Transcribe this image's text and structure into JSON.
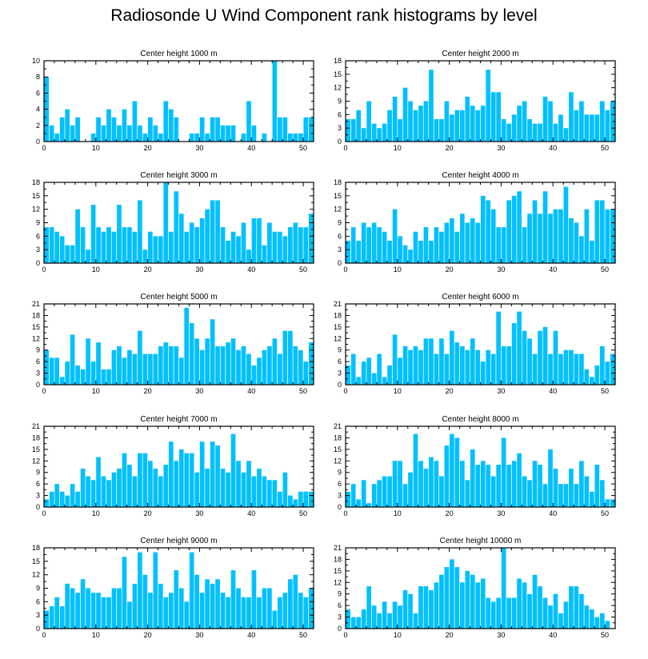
{
  "title": "Radiosonde U Wind Component rank histograms by level",
  "colors": {
    "bar": "#00c0ff",
    "bar_edge": "#ffffff",
    "axis": "#000000",
    "background": "#ffffff"
  },
  "chart_data": [
    {
      "type": "bar",
      "title": "Center height 1000 m",
      "xlim": [
        0,
        52
      ],
      "xticks": [
        0,
        10,
        20,
        30,
        40,
        50
      ],
      "ylim": [
        0,
        10
      ],
      "yticks": [
        0,
        2,
        4,
        6,
        8,
        10
      ],
      "values": [
        8,
        2,
        1,
        3,
        4,
        2,
        3,
        0,
        0,
        1,
        3,
        2,
        4,
        3,
        2,
        4,
        2,
        5,
        2,
        1,
        3,
        2,
        1,
        5,
        4,
        3,
        0,
        0,
        1,
        1,
        3,
        1,
        3,
        3,
        2,
        2,
        2,
        0,
        1,
        5,
        2,
        0,
        1,
        0,
        10,
        3,
        3,
        1,
        1,
        1,
        3,
        3
      ]
    },
    {
      "type": "bar",
      "title": "Center height 2000 m",
      "xlim": [
        0,
        52
      ],
      "xticks": [
        0,
        10,
        20,
        30,
        40,
        50
      ],
      "ylim": [
        0,
        18
      ],
      "yticks": [
        0,
        3,
        6,
        9,
        12,
        15,
        18
      ],
      "values": [
        5,
        5,
        7,
        3,
        9,
        4,
        3,
        4,
        7,
        10,
        5,
        12,
        9,
        7,
        8,
        9,
        16,
        5,
        5,
        9,
        6,
        7,
        7,
        10,
        8,
        7,
        8,
        16,
        11,
        11,
        5,
        4,
        6,
        8,
        9,
        5,
        4,
        4,
        10,
        9,
        4,
        6,
        3,
        11,
        7,
        9,
        6,
        6,
        6,
        9,
        7,
        9
      ]
    },
    {
      "type": "bar",
      "title": "Center height 3000 m",
      "xlim": [
        0,
        52
      ],
      "xticks": [
        0,
        10,
        20,
        30,
        40,
        50
      ],
      "ylim": [
        0,
        18
      ],
      "yticks": [
        0,
        3,
        6,
        9,
        12,
        15,
        18
      ],
      "values": [
        8,
        8,
        7,
        6,
        4,
        4,
        12,
        8,
        3,
        13,
        8,
        7,
        8,
        7,
        13,
        8,
        8,
        7,
        14,
        3,
        7,
        6,
        6,
        18,
        7,
        16,
        11,
        7,
        9,
        8,
        10,
        12,
        14,
        14,
        8,
        5,
        7,
        6,
        9,
        3,
        10,
        10,
        4,
        9,
        7,
        7,
        6,
        8,
        9,
        8,
        8,
        11
      ]
    },
    {
      "type": "bar",
      "title": "Center height 4000 m",
      "xlim": [
        0,
        52
      ],
      "xticks": [
        0,
        10,
        20,
        30,
        40,
        50
      ],
      "ylim": [
        0,
        18
      ],
      "yticks": [
        0,
        3,
        6,
        9,
        12,
        15,
        18
      ],
      "values": [
        5,
        8,
        5,
        9,
        8,
        9,
        8,
        7,
        5,
        12,
        6,
        4,
        3,
        7,
        5,
        8,
        5,
        8,
        7,
        9,
        10,
        7,
        11,
        9,
        10,
        9,
        15,
        14,
        12,
        8,
        8,
        14,
        15,
        16,
        8,
        11,
        14,
        11,
        16,
        11,
        12,
        12,
        17,
        10,
        9,
        6,
        12,
        5,
        14,
        14,
        12,
        12
      ]
    },
    {
      "type": "bar",
      "title": "Center height 5000 m",
      "xlim": [
        0,
        52
      ],
      "xticks": [
        0,
        10,
        20,
        30,
        40,
        50
      ],
      "ylim": [
        0,
        21
      ],
      "yticks": [
        0,
        3,
        6,
        9,
        12,
        15,
        18,
        21
      ],
      "values": [
        9,
        7,
        7,
        2,
        6,
        13,
        5,
        4,
        12,
        6,
        11,
        4,
        4,
        9,
        10,
        7,
        9,
        8,
        14,
        8,
        8,
        8,
        10,
        11,
        10,
        10,
        7,
        20,
        16,
        12,
        9,
        12,
        17,
        10,
        10,
        11,
        12,
        9,
        10,
        8,
        5,
        7,
        9,
        10,
        12,
        8,
        14,
        14,
        10,
        9,
        6,
        11
      ]
    },
    {
      "type": "bar",
      "title": "Center height 6000 m",
      "xlim": [
        0,
        52
      ],
      "xticks": [
        0,
        10,
        20,
        30,
        40,
        50
      ],
      "ylim": [
        0,
        21
      ],
      "yticks": [
        0,
        3,
        6,
        9,
        12,
        15,
        18,
        21
      ],
      "values": [
        5,
        8,
        2,
        6,
        7,
        3,
        8,
        2,
        5,
        13,
        7,
        10,
        9,
        10,
        9,
        12,
        12,
        8,
        12,
        8,
        14,
        11,
        10,
        9,
        12,
        9,
        6,
        9,
        8,
        19,
        10,
        10,
        16,
        19,
        14,
        12,
        8,
        14,
        15,
        8,
        14,
        8,
        9,
        9,
        8,
        8,
        4,
        2,
        5,
        10,
        6,
        8
      ]
    },
    {
      "type": "bar",
      "title": "Center height 7000 m",
      "xlim": [
        0,
        52
      ],
      "xticks": [
        0,
        10,
        20,
        30,
        40,
        50
      ],
      "ylim": [
        0,
        21
      ],
      "yticks": [
        0,
        3,
        6,
        9,
        12,
        15,
        18,
        21
      ],
      "values": [
        2,
        4,
        6,
        4,
        3,
        6,
        4,
        10,
        8,
        7,
        13,
        8,
        7,
        9,
        10,
        14,
        11,
        8,
        14,
        14,
        12,
        10,
        8,
        11,
        17,
        12,
        15,
        14,
        14,
        9,
        17,
        10,
        17,
        16,
        10,
        9,
        19,
        12,
        9,
        12,
        8,
        10,
        8,
        7,
        7,
        4,
        9,
        3,
        2,
        4,
        4,
        4
      ]
    },
    {
      "type": "bar",
      "title": "Center height 8000 m",
      "xlim": [
        0,
        52
      ],
      "xticks": [
        0,
        10,
        20,
        30,
        40,
        50
      ],
      "ylim": [
        0,
        21
      ],
      "yticks": [
        0,
        3,
        6,
        9,
        12,
        15,
        18,
        21
      ],
      "values": [
        4,
        6,
        2,
        7,
        1,
        6,
        7,
        8,
        8,
        12,
        12,
        6,
        9,
        19,
        12,
        10,
        13,
        12,
        8,
        16,
        19,
        18,
        12,
        7,
        15,
        11,
        12,
        11,
        8,
        11,
        18,
        11,
        12,
        14,
        8,
        7,
        12,
        11,
        6,
        15,
        10,
        6,
        6,
        10,
        6,
        12,
        8,
        4,
        11,
        7,
        2,
        2
      ]
    },
    {
      "type": "bar",
      "title": "Center height 9000 m",
      "xlim": [
        0,
        52
      ],
      "xticks": [
        0,
        10,
        20,
        30,
        40,
        50
      ],
      "ylim": [
        0,
        18
      ],
      "yticks": [
        0,
        3,
        6,
        9,
        12,
        15,
        18
      ],
      "values": [
        4,
        5,
        7,
        5,
        10,
        9,
        8,
        11,
        9,
        8,
        8,
        7,
        7,
        9,
        9,
        16,
        6,
        10,
        17,
        12,
        8,
        17,
        10,
        7,
        8,
        13,
        9,
        6,
        17,
        12,
        8,
        11,
        10,
        11,
        8,
        7,
        13,
        9,
        7,
        7,
        13,
        7,
        9,
        9,
        4,
        7,
        8,
        11,
        12,
        8,
        7,
        9
      ]
    },
    {
      "type": "bar",
      "title": "Center height 10000 m",
      "xlim": [
        0,
        52
      ],
      "xticks": [
        0,
        10,
        20,
        30,
        40,
        50
      ],
      "ylim": [
        0,
        21
      ],
      "yticks": [
        0,
        3,
        6,
        9,
        12,
        15,
        18,
        21
      ],
      "values": [
        5,
        3,
        3,
        5,
        11,
        6,
        4,
        7,
        4,
        7,
        6,
        10,
        9,
        4,
        11,
        11,
        10,
        12,
        14,
        16,
        18,
        16,
        12,
        15,
        14,
        12,
        13,
        8,
        7,
        8,
        21,
        8,
        8,
        13,
        12,
        9,
        14,
        11,
        8,
        6,
        9,
        4,
        7,
        11,
        11,
        9,
        6,
        5,
        3,
        4,
        2,
        0
      ]
    }
  ]
}
